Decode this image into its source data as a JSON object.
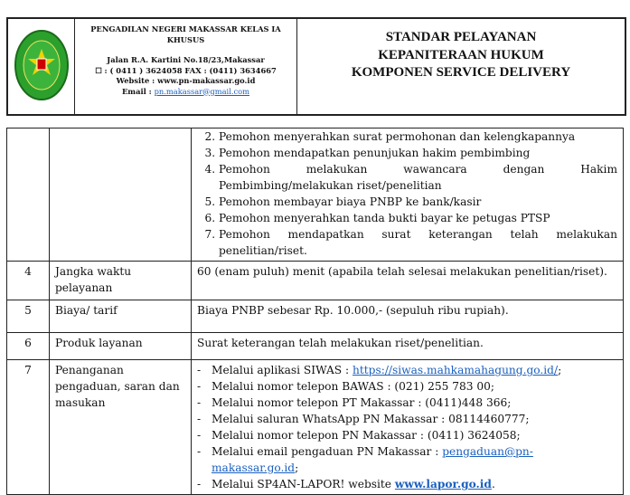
{
  "header": {
    "org_name": "PENGADILAN NEGERI MAKASSAR KELAS IA KHUSUS",
    "address": "Jalan  R.A. Kartini No.18/23,Makassar",
    "phone_fax": ": ( 0411 ) 3624058 FAX : (0411) 3634667",
    "website": "Website : www.pn-makassar.go.id",
    "email_label": "Email : ",
    "email": "pn.makassar@gmail.com",
    "logo_text": "PENGADILAN NEGERI MAKASSAR",
    "title_lines": [
      "STANDAR PELAYANAN",
      "KEPANITERAAN HUKUM",
      "KOMPONEN SERVICE DELIVERY"
    ]
  },
  "procedure_steps": [
    {
      "n": "2.",
      "text": "Pemohon menyerahkan surat permohonan dan kelengkapannya"
    },
    {
      "n": "3.",
      "text": "Pemohon mendapatkan penunjukan hakim pembimbing"
    },
    {
      "n": "4.",
      "text": "Pemohon melakukan wawancara dengan Hakim Pembimbing/melakukan riset/penelitian"
    },
    {
      "n": "5.",
      "text": "Pemohon membayar biaya PNBP ke bank/kasir"
    },
    {
      "n": "6.",
      "text": "Pemohon menyerahkan tanda bukti bayar ke petugas PTSP"
    },
    {
      "n": "7.",
      "text": "Pemohon mendapatkan surat keterangan telah melakukan penelitian/riset."
    }
  ],
  "rows": [
    {
      "no": "4",
      "label": "Jangka waktu pelayanan",
      "value": "60  (enam puluh) menit   (apabila telah selesai melakukan penelitian/riset)."
    },
    {
      "no": "5",
      "label": "Biaya/ tarif",
      "value": "Biaya PNBP sebesar Rp. 10.000,- (sepuluh ribu rupiah)."
    },
    {
      "no": "6",
      "label": "Produk layanan",
      "value": "Surat keterangan telah melakukan riset/penelitian."
    }
  ],
  "complaints": {
    "no": "7",
    "label": "Penanganan pengaduan, saran dan masukan",
    "items": [
      {
        "text": "Melalui aplikasi SIWAS : ",
        "link": "https://siwas.mahkamahagung.go.id/",
        "suffix": ";"
      },
      {
        "text": "Melalui nomor telepon BAWAS : (021) 255 783 00;"
      },
      {
        "text": "Melalui nomor telepon PT Makassar : (0411)448 366;"
      },
      {
        "text": "Melalui saluran WhatsApp PN Makassar : 08114460777;"
      },
      {
        "text": "Melalui nomor telepon PN Makassar : (0411) 3624058;"
      },
      {
        "text": "Melalui email pengaduan PN Makassar : ",
        "link": "pengaduan@pn-makassar.go.id",
        "suffix": ";"
      },
      {
        "text": "Melalui SP4AN-LAPOR! website ",
        "link": "www.lapor.go.id",
        "suffix": "."
      }
    ]
  }
}
